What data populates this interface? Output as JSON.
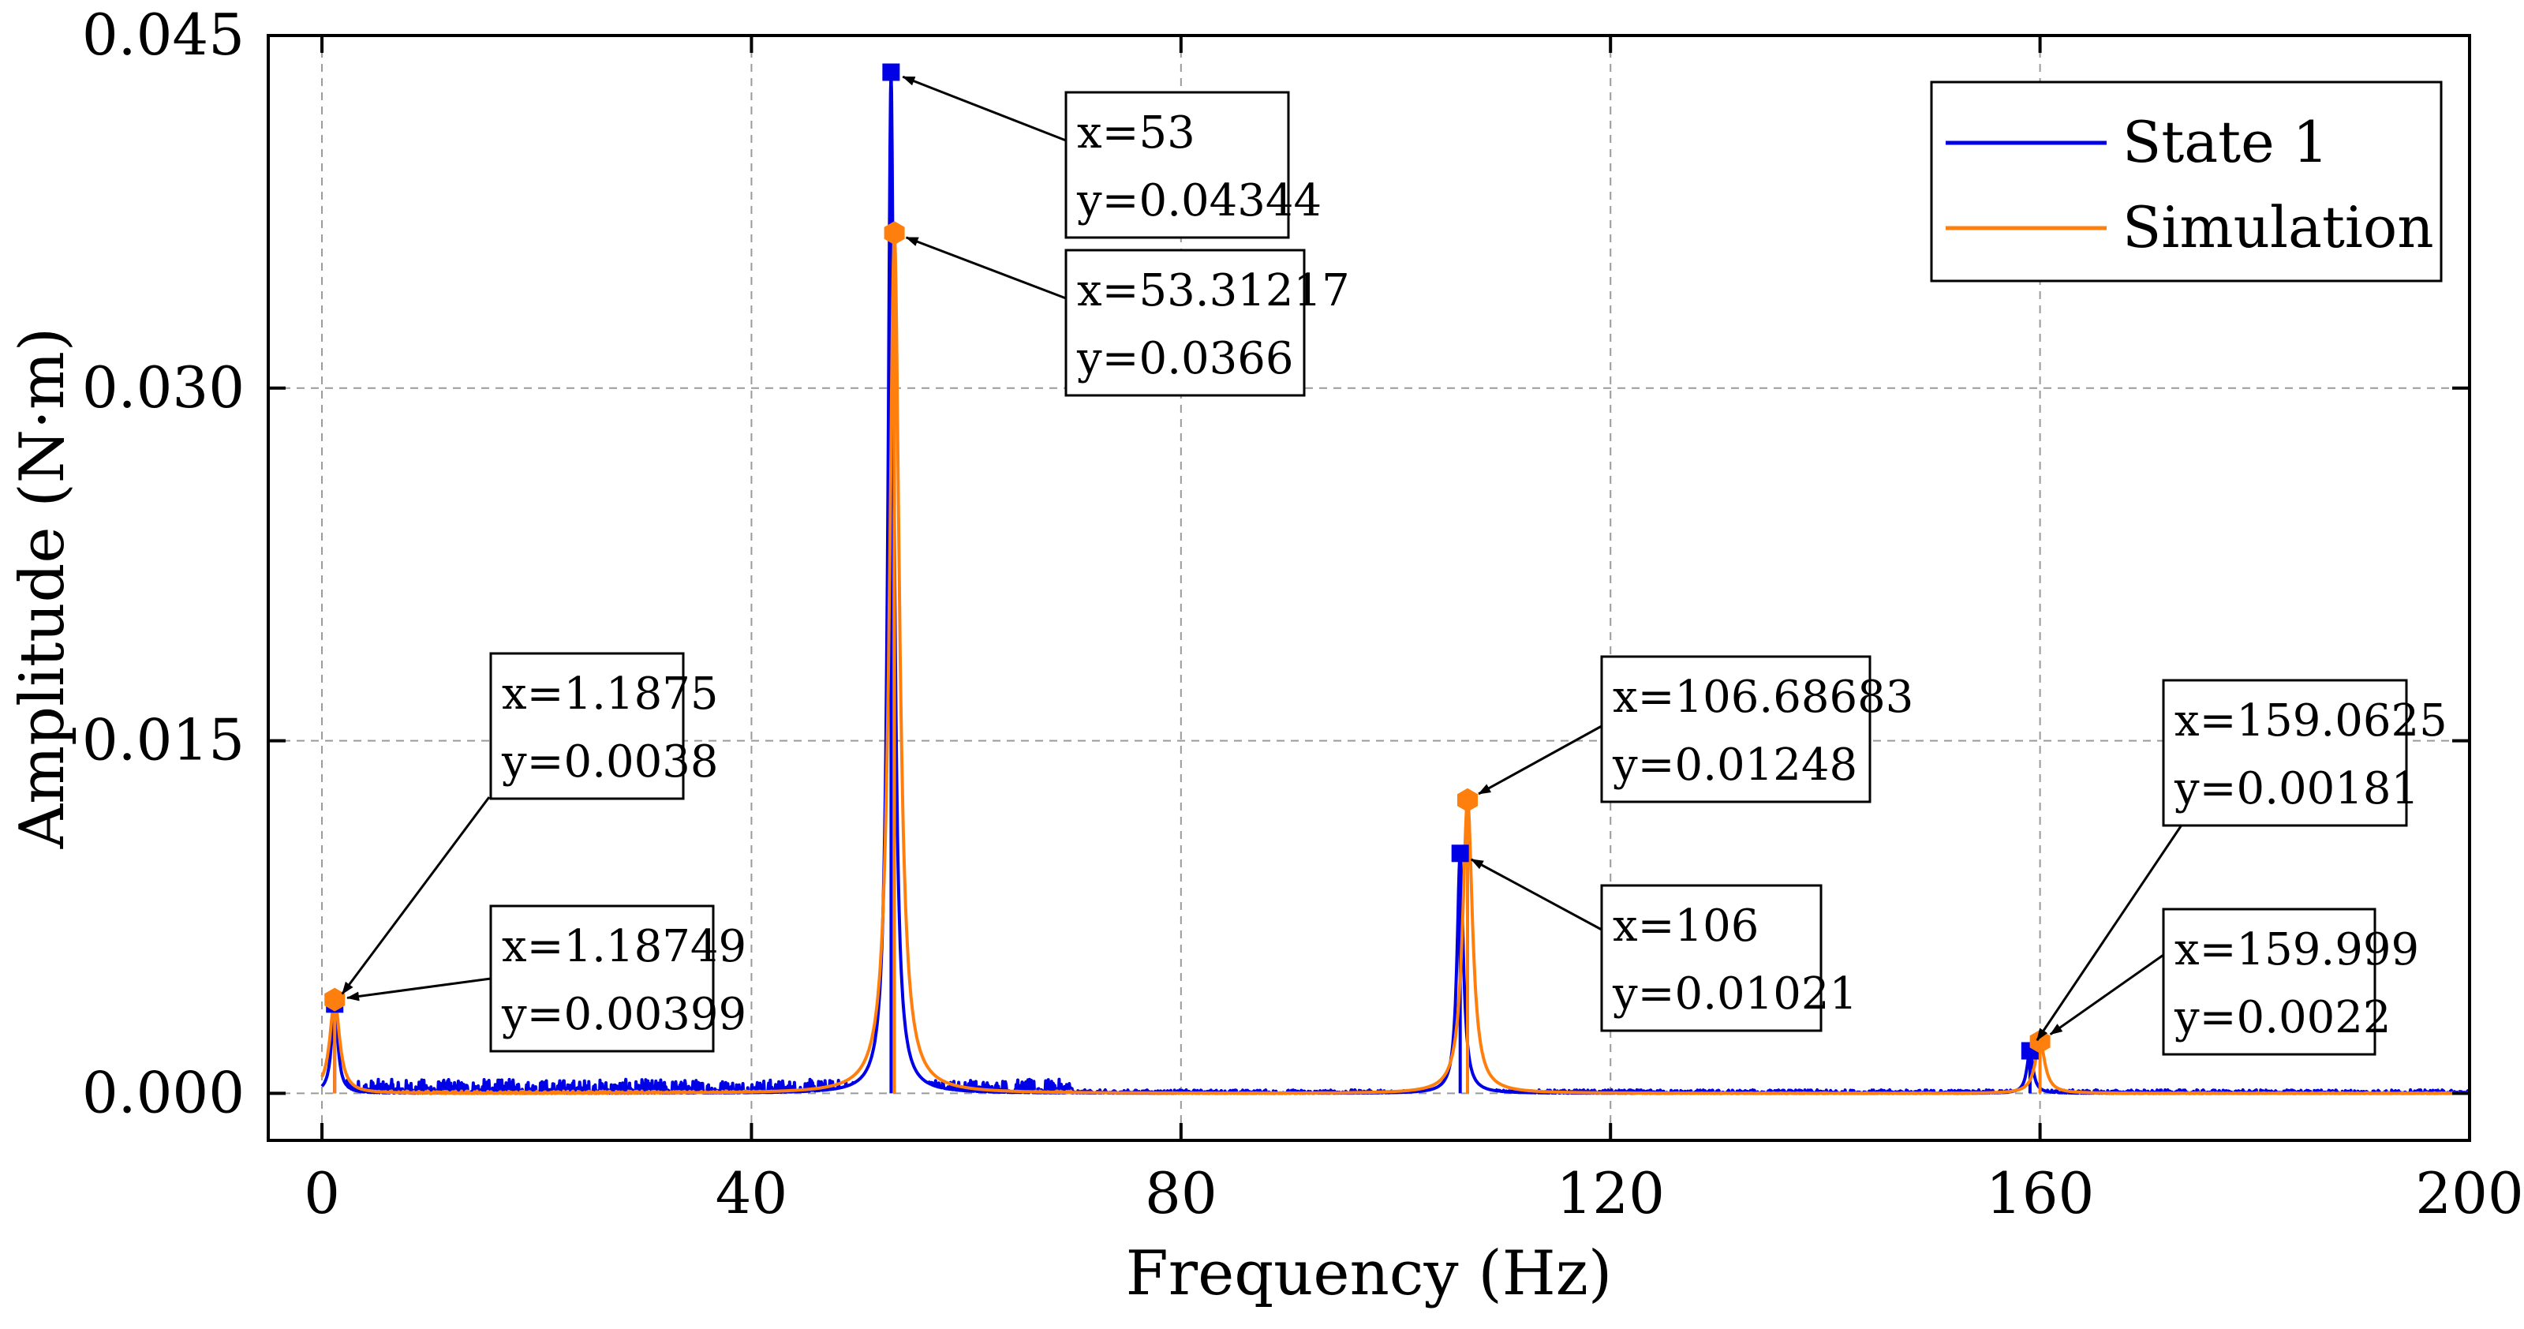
{
  "chart_data": {
    "type": "line",
    "title": "",
    "xlabel": "Frequency (Hz)",
    "ylabel": "Amplitude (N·m)",
    "xlim": [
      -5,
      200
    ],
    "ylim": [
      -0.002,
      0.045
    ],
    "xticks": [
      0,
      40,
      80,
      120,
      160,
      200
    ],
    "xtick_labels": [
      "0",
      "40",
      "80",
      "120",
      "160",
      "200"
    ],
    "yticks": [
      0.0,
      0.015,
      0.03,
      0.045
    ],
    "ytick_labels": [
      "0.000",
      "0.015",
      "0.030",
      "0.045"
    ],
    "grid": true,
    "legend_position": "top-right",
    "series": [
      {
        "name": "State 1",
        "color": "#0000e6",
        "marker": "square",
        "baseline_noise_max": 0.0006,
        "peaks": [
          {
            "x": 1.1875,
            "y": 0.0038
          },
          {
            "x": 53,
            "y": 0.04344
          },
          {
            "x": 106,
            "y": 0.01021
          },
          {
            "x": 159.0625,
            "y": 0.00181
          }
        ]
      },
      {
        "name": "Simulation",
        "color": "#ff7f0e",
        "marker": "hexagon",
        "baseline_noise_max": 0.0001,
        "peaks": [
          {
            "x": 1.18749,
            "y": 0.00399
          },
          {
            "x": 53.31217,
            "y": 0.0366
          },
          {
            "x": 106.68683,
            "y": 0.01248
          },
          {
            "x": 159.999,
            "y": 0.0022
          }
        ]
      }
    ],
    "annotations": [
      {
        "series": "State 1",
        "x": 1.1875,
        "y": 0.0038,
        "line1": "x=1.1875",
        "line2": "y=0.0038"
      },
      {
        "series": "Simulation",
        "x": 1.18749,
        "y": 0.00399,
        "line1": "x=1.18749",
        "line2": "y=0.00399"
      },
      {
        "series": "State 1",
        "x": 53,
        "y": 0.04344,
        "line1": "x=53",
        "line2": "y=0.04344"
      },
      {
        "series": "Simulation",
        "x": 53.31217,
        "y": 0.0366,
        "line1": "x=53.31217",
        "line2": "y=0.0366"
      },
      {
        "series": "Simulation",
        "x": 106.68683,
        "y": 0.01248,
        "line1": "x=106.68683",
        "line2": "y=0.01248"
      },
      {
        "series": "State 1",
        "x": 106,
        "y": 0.01021,
        "line1": "x=106",
        "line2": "y=0.01021"
      },
      {
        "series": "State 1",
        "x": 159.0625,
        "y": 0.00181,
        "line1": "x=159.0625",
        "line2": "y=0.00181"
      },
      {
        "series": "Simulation",
        "x": 159.999,
        "y": 0.0022,
        "line1": "x=159.999",
        "line2": "y=0.0022"
      }
    ]
  }
}
